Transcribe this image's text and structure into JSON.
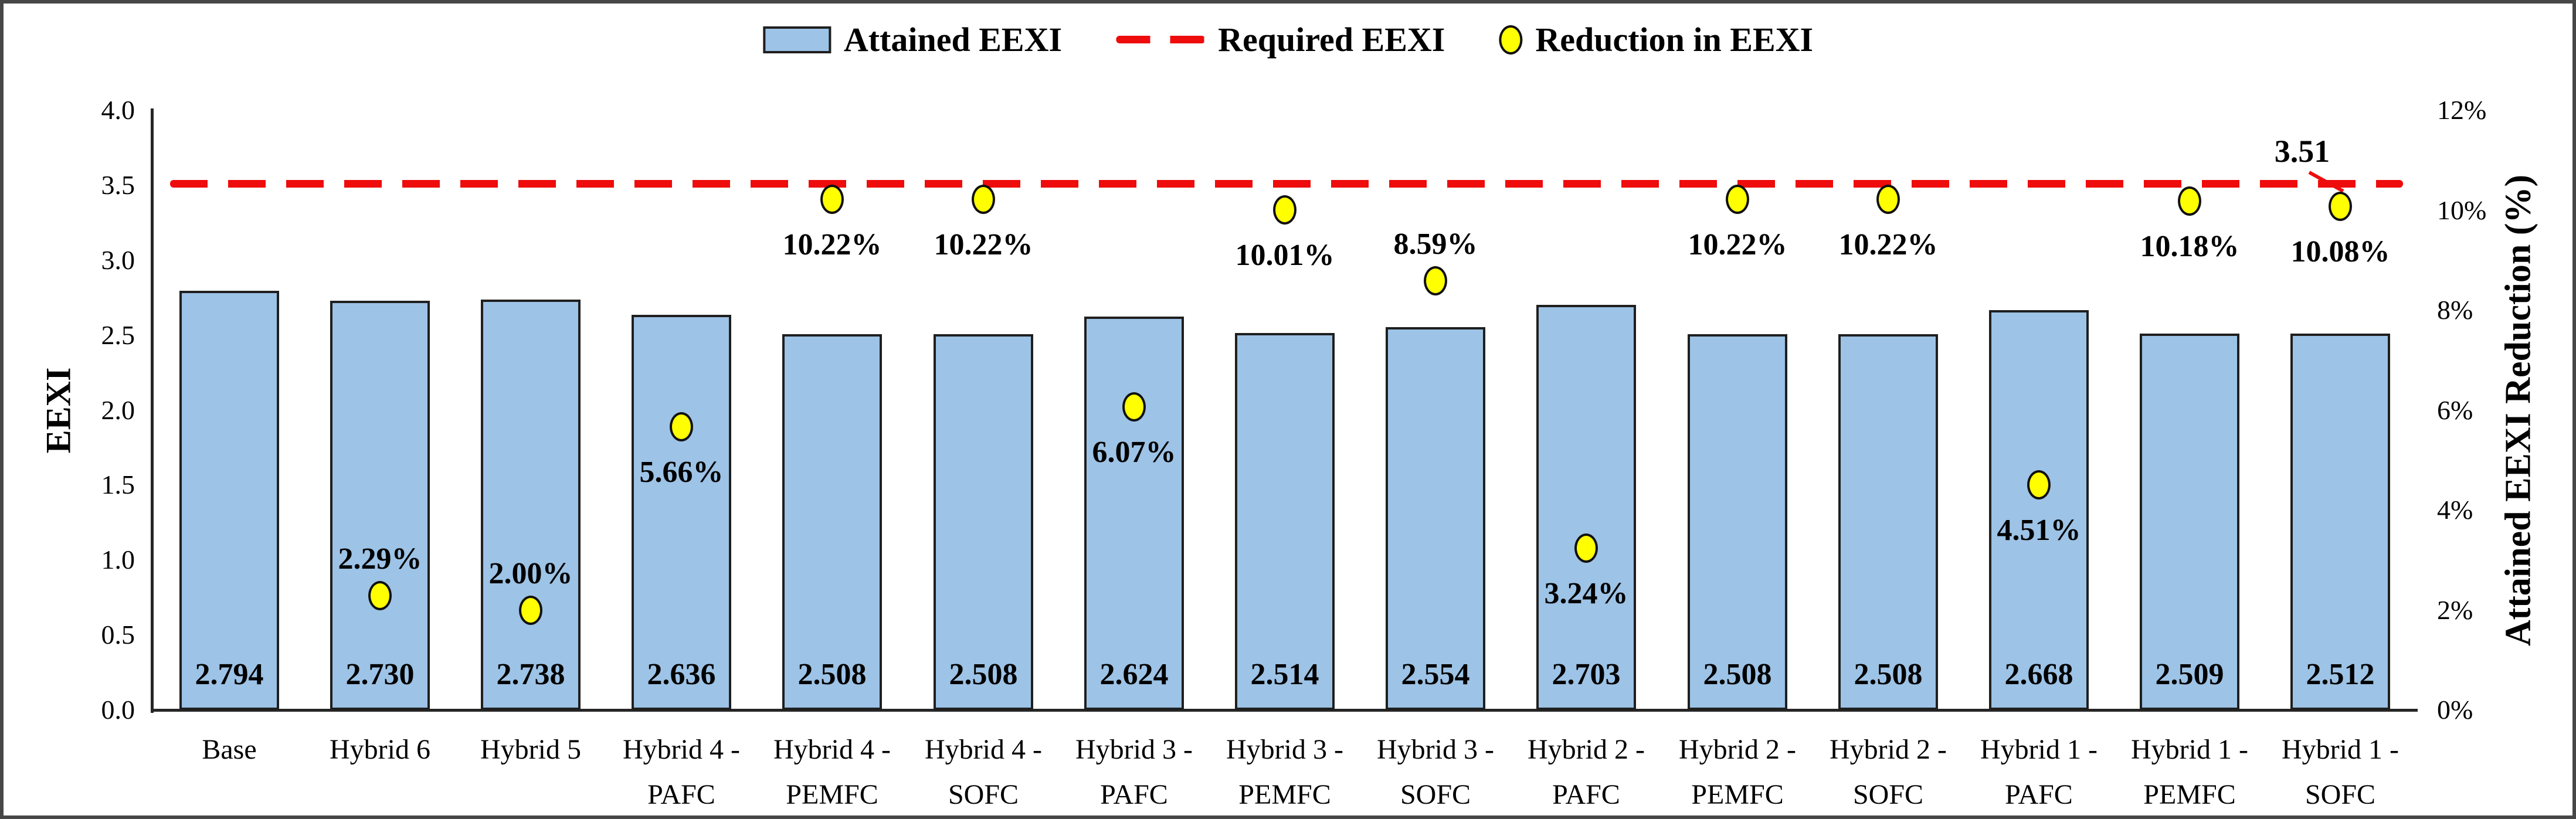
{
  "legend": {
    "items": [
      {
        "label": "Attained EEXI",
        "swatch": "bar-swatch",
        "color": "#9DC3E6"
      },
      {
        "label": "Required EEXI",
        "swatch": "dash-swatch",
        "color": "#EE0C0C"
      },
      {
        "label": "Reduction in EEXI",
        "swatch": "circle-marker-swatch",
        "color": "#FFFF00"
      }
    ]
  },
  "chart_data": {
    "type": "bar",
    "title": "",
    "categories": [
      "Base",
      "Hybrid 6",
      "Hybrid 5",
      "Hybrid 4 -\nPAFC",
      "Hybrid 4 -\nPEMFC",
      "Hybrid 4 -\nSOFC",
      "Hybrid 3 -\nPAFC",
      "Hybrid 3 -\nPEMFC",
      "Hybrid 3 -\nSOFC",
      "Hybrid 2 -\nPAFC",
      "Hybrid 2 -\nPEMFC",
      "Hybrid 2 -\nSOFC",
      "Hybrid 1 -\nPAFC",
      "Hybrid 1 -\nPEMFC",
      "Hybrid 1 -\nSOFC"
    ],
    "series": [
      {
        "name": "Attained EEXI",
        "type": "bar",
        "axis": "left",
        "color": "#9DC3E6",
        "edge_color": "#1F1F1F",
        "values": [
          2.794,
          2.73,
          2.738,
          2.636,
          2.508,
          2.508,
          2.624,
          2.514,
          2.554,
          2.703,
          2.508,
          2.508,
          2.668,
          2.509,
          2.512
        ],
        "value_labels": [
          "2.794",
          "2.730",
          "2.738",
          "2.636",
          "2.508",
          "2.508",
          "2.624",
          "2.514",
          "2.554",
          "2.703",
          "2.508",
          "2.508",
          "2.668",
          "2.509",
          "2.512"
        ]
      },
      {
        "name": "Required EEXI",
        "type": "dashed-line",
        "axis": "left",
        "color": "#EE0C0C",
        "value": 3.51
      },
      {
        "name": "Reduction in EEXI",
        "type": "scatter",
        "axis": "right",
        "color": "#FFFF00",
        "edge_color": "#111111",
        "values": [
          null,
          2.29,
          2.0,
          5.66,
          10.22,
          10.22,
          6.07,
          10.01,
          8.59,
          3.24,
          10.22,
          10.22,
          4.51,
          10.18,
          10.08
        ],
        "point_labels": [
          null,
          "2.29%",
          "2.00%",
          "5.66%",
          "10.22%",
          "10.22%",
          "6.07%",
          "10.01%",
          "8.59%",
          "3.24%",
          "10.22%",
          "10.22%",
          "4.51%",
          "10.18%",
          "10.08%"
        ],
        "label_positions": [
          null,
          "above",
          "above",
          "below",
          "below",
          "below",
          "below",
          "below",
          "above",
          "below",
          "below",
          "below",
          "below",
          "below",
          "below"
        ]
      }
    ],
    "left_axis": {
      "label": "EEXI",
      "min": 0,
      "max": 4,
      "tick_labels": [
        "0.0",
        "0.5",
        "1.0",
        "1.5",
        "2.0",
        "2.5",
        "3.0",
        "3.5",
        "4.0"
      ]
    },
    "right_axis": {
      "label": "Attained EEXI Reduction (%)",
      "min": 0,
      "max": 12,
      "tick_labels": [
        "0%",
        "2%",
        "4%",
        "6%",
        "8%",
        "10%",
        "12%"
      ]
    },
    "annotation": {
      "text": "3.51",
      "target_value": 3.51
    },
    "legend_position": "top",
    "grid": false
  }
}
